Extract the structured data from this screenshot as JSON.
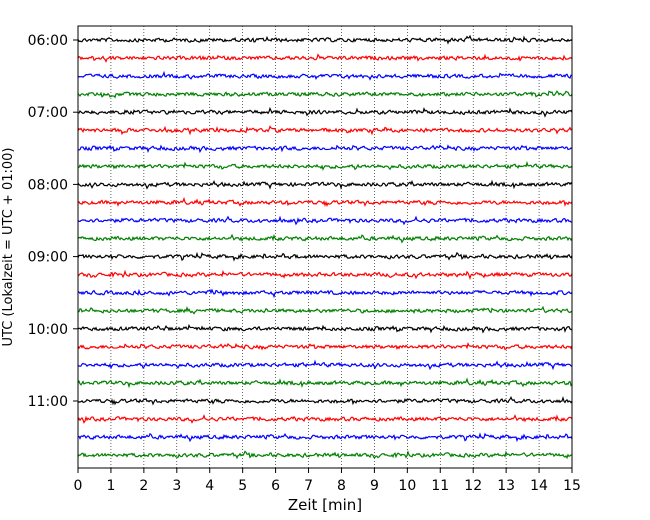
{
  "chart_data": {
    "type": "line",
    "title": "",
    "xlabel": "Zeit  [min]",
    "ylabel": "UTC (Lokalzeit = UTC + 01:00)",
    "xlim": [
      0,
      15
    ],
    "xticks": [
      0,
      1,
      2,
      3,
      4,
      5,
      6,
      7,
      8,
      9,
      10,
      11,
      12,
      13,
      14,
      15
    ],
    "ytick_labels": [
      "06:00",
      "07:00",
      "08:00",
      "09:00",
      "10:00",
      "11:00"
    ],
    "trace_start": "06:00",
    "trace_interval_min": 15,
    "trace_count": 24,
    "trace_colors": [
      "#000000",
      "#ff0000",
      "#0000ff",
      "#008000"
    ],
    "vertical_grid": "dotted",
    "legend": "none"
  }
}
